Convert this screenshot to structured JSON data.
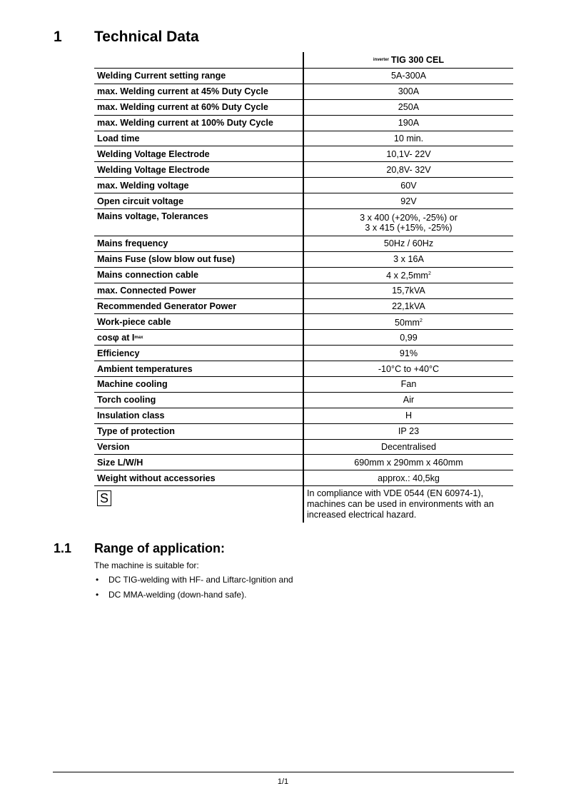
{
  "section1": {
    "number": "1",
    "title": "Technical Data"
  },
  "table": {
    "header_prefix": "inverter",
    "header_model": "TIG 300 CEL",
    "rows": [
      {
        "label": "Welding Current setting range",
        "value": "5A-300A"
      },
      {
        "label": "max. Welding current at 45% Duty Cycle",
        "value": "300A"
      },
      {
        "label": "max. Welding current at 60% Duty Cycle",
        "value": "250A"
      },
      {
        "label": "max. Welding current at 100% Duty Cycle",
        "value": "190A"
      },
      {
        "label": "Load time",
        "value": "10 min."
      },
      {
        "label": "Welding Voltage Electrode",
        "value": "10,1V- 22V"
      },
      {
        "label": "Welding Voltage Electrode",
        "value": "20,8V- 32V"
      },
      {
        "label": "max. Welding voltage",
        "value": "60V"
      },
      {
        "label": "Open circuit voltage",
        "value": "92V"
      },
      {
        "label": "Mains voltage, Tolerances",
        "value": "3 x 400 (+20%, -25%) or",
        "value2": "3 x 415 (+15%, -25%)"
      },
      {
        "label": "Mains frequency",
        "value": "50Hz / 60Hz"
      },
      {
        "label": "Mains Fuse (slow blow out fuse)",
        "value": "3 x 16A"
      },
      {
        "label": "Mains connection cable",
        "value": "4 x 2,5mm",
        "value_sup": "2"
      },
      {
        "label": "max. Connected Power",
        "value": "15,7kVA"
      },
      {
        "label": "Recommended Generator Power",
        "value": "22,1kVA"
      },
      {
        "label": "Work-piece cable",
        "value": "50mm",
        "value_sup": "2"
      },
      {
        "label": "cosφ at I",
        "label_sub": "max",
        "value": "0,99"
      },
      {
        "label": "Efficiency",
        "value": "91%"
      },
      {
        "label": "Ambient temperatures",
        "value": "-10°C to +40°C"
      },
      {
        "label": "Machine cooling",
        "value": "Fan"
      },
      {
        "label": "Torch cooling",
        "value": "Air"
      },
      {
        "label": "Insulation class",
        "value": "H"
      },
      {
        "label": "Type of protection",
        "value": "IP 23"
      },
      {
        "label": "Version",
        "value": "Decentralised"
      },
      {
        "label": "Size L/W/H",
        "value": "690mm x 290mm x 460mm"
      },
      {
        "label": "Weight without accessories",
        "value": "approx.: 40,5kg"
      }
    ],
    "s_mark": "S",
    "s_note": "In compliance with VDE 0544 (EN 60974-1), machines can be used in environments with an increased electrical hazard."
  },
  "section11": {
    "number": "1.1",
    "title": "Range of application:",
    "intro": "The machine is suitable for:",
    "bullets": [
      "DC TIG-welding with HF- and Liftarc-Ignition and",
      "DC MMA-welding (down-hand safe)."
    ]
  },
  "footer": {
    "page": "1/1"
  }
}
